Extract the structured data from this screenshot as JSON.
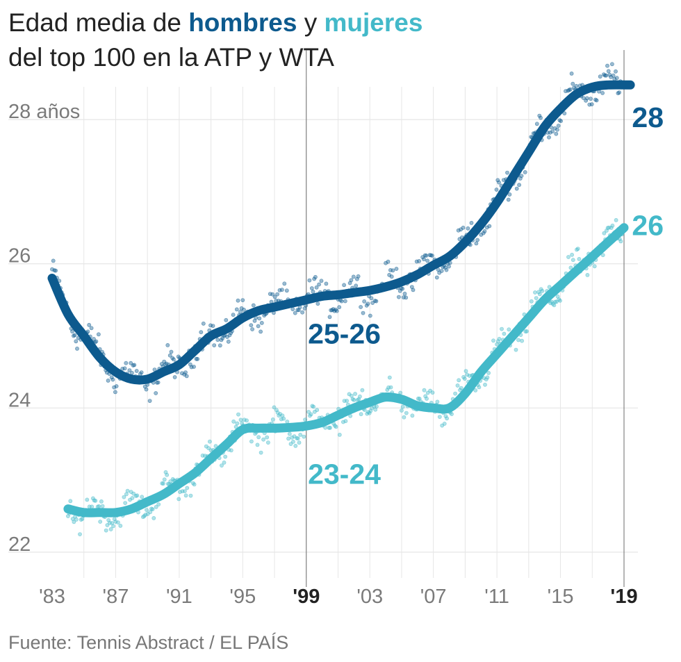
{
  "title": {
    "part1": "Edad media de ",
    "men": "hombres",
    "mid": " y ",
    "women": "mujeres",
    "line2": "del top 100 en la ATP y WTA"
  },
  "source": "Fuente: Tennis Abstract / EL PAÍS",
  "colors": {
    "men": "#0d5a8e",
    "women": "#43b9c9",
    "grid": "#e6e6e6",
    "axis_text": "#7a7a7a"
  },
  "chart_data": {
    "type": "line",
    "title": "Edad media de hombres y mujeres del top 100 en la ATP y WTA",
    "xlim": [
      1983,
      2019
    ],
    "ylim": [
      21.7,
      29.1
    ],
    "y_ticks": [
      {
        "value": 22,
        "label": "22"
      },
      {
        "value": 24,
        "label": "24"
      },
      {
        "value": 26,
        "label": "26"
      },
      {
        "value": 28,
        "label": "28 años"
      }
    ],
    "x_ticks": [
      {
        "value": 1983,
        "label": "'83",
        "bold": false
      },
      {
        "value": 1987,
        "label": "'87",
        "bold": false
      },
      {
        "value": 1991,
        "label": "'91",
        "bold": false
      },
      {
        "value": 1995,
        "label": "'95",
        "bold": false
      },
      {
        "value": 1999,
        "label": "'99",
        "bold": true
      },
      {
        "value": 2003,
        "label": "'03",
        "bold": false
      },
      {
        "value": 2007,
        "label": "'07",
        "bold": false
      },
      {
        "value": 2011,
        "label": "'11",
        "bold": false
      },
      {
        "value": 2015,
        "label": "'15",
        "bold": false
      },
      {
        "value": 2019,
        "label": "'19",
        "bold": true
      }
    ],
    "reference_lines": [
      1999,
      2019
    ],
    "series": [
      {
        "name": "hombres",
        "color": "#0d5a8e",
        "x": [
          1983,
          1984,
          1985,
          1986,
          1987,
          1988,
          1989,
          1990,
          1991,
          1992,
          1993,
          1994,
          1995,
          1996,
          1997,
          1998,
          1999,
          2000,
          2001,
          2002,
          2003,
          2004,
          2005,
          2006,
          2007,
          2008,
          2009,
          2010,
          2011,
          2012,
          2013,
          2014,
          2015,
          2016,
          2017,
          2018,
          2019.4
        ],
        "y": [
          25.8,
          25.3,
          25.0,
          24.7,
          24.5,
          24.4,
          24.4,
          24.5,
          24.6,
          24.8,
          25.0,
          25.1,
          25.25,
          25.35,
          25.4,
          25.45,
          25.5,
          25.55,
          25.57,
          25.6,
          25.63,
          25.68,
          25.75,
          25.85,
          25.98,
          26.1,
          26.3,
          26.55,
          26.85,
          27.2,
          27.55,
          27.9,
          28.15,
          28.35,
          28.45,
          28.48,
          28.48
        ]
      },
      {
        "name": "mujeres",
        "color": "#43b9c9",
        "x": [
          1984,
          1985,
          1986,
          1987,
          1988,
          1989,
          1990,
          1991,
          1992,
          1993,
          1994,
          1995,
          1996,
          1997,
          1998,
          1999,
          2000,
          2001,
          2002,
          2003,
          2004,
          2005,
          2006,
          2007,
          2008,
          2009,
          2010,
          2011,
          2012,
          2013,
          2014,
          2015,
          2016,
          2017,
          2018,
          2019
        ],
        "y": [
          22.6,
          22.55,
          22.55,
          22.55,
          22.6,
          22.7,
          22.8,
          22.95,
          23.1,
          23.3,
          23.5,
          23.7,
          23.72,
          23.72,
          23.73,
          23.75,
          23.8,
          23.9,
          24.0,
          24.08,
          24.15,
          24.12,
          24.03,
          24.0,
          24.0,
          24.2,
          24.5,
          24.75,
          25.0,
          25.25,
          25.5,
          25.7,
          25.9,
          26.1,
          26.3,
          26.5
        ]
      }
    ],
    "annotations": [
      {
        "text": "25-26",
        "series": "hombres",
        "x": 1999.1,
        "y": 25.0
      },
      {
        "text": "23-24",
        "series": "mujeres",
        "x": 1999.1,
        "y": 23.05
      },
      {
        "text": "28",
        "series": "hombres",
        "x": 2019.5,
        "y": 28.0
      },
      {
        "text": "26",
        "series": "mujeres",
        "x": 2019.5,
        "y": 26.5
      }
    ],
    "scatter_noise": {
      "hombres": 0.16,
      "mujeres": 0.15
    }
  }
}
